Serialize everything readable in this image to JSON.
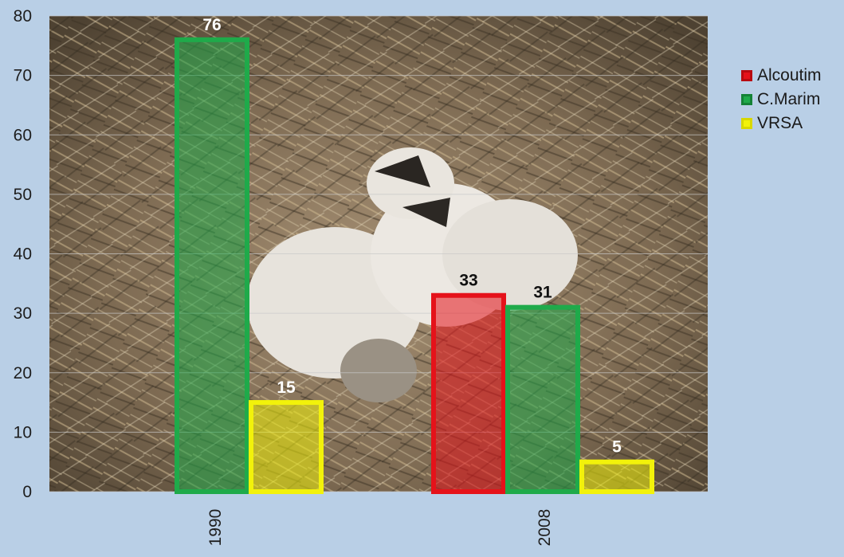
{
  "chart_data": {
    "type": "bar",
    "categories": [
      "1990",
      "2008"
    ],
    "series": [
      {
        "name": "Alcoutim",
        "values": [
          null,
          33
        ],
        "color": "#e5121a"
      },
      {
        "name": "C.Marim",
        "values": [
          76,
          31
        ],
        "color": "#1faa4a"
      },
      {
        "name": "VRSA",
        "values": [
          15,
          5
        ],
        "color": "#f2f20a"
      }
    ],
    "ylim": [
      0,
      80
    ],
    "yticks": [
      "0",
      "10",
      "20",
      "30",
      "40",
      "50",
      "60",
      "70",
      "80"
    ],
    "grid": true,
    "legend_position": "right",
    "background": "photograph of white stork chicks and an egg in a nest",
    "label_colors": {
      "Alcoutim": "#000000",
      "C.Marim": "#000000",
      "VRSA": "#ffffff"
    },
    "label_color_1990_cmarim": "#ffffff",
    "label_color_2008_vrsa": "#ffffff"
  }
}
